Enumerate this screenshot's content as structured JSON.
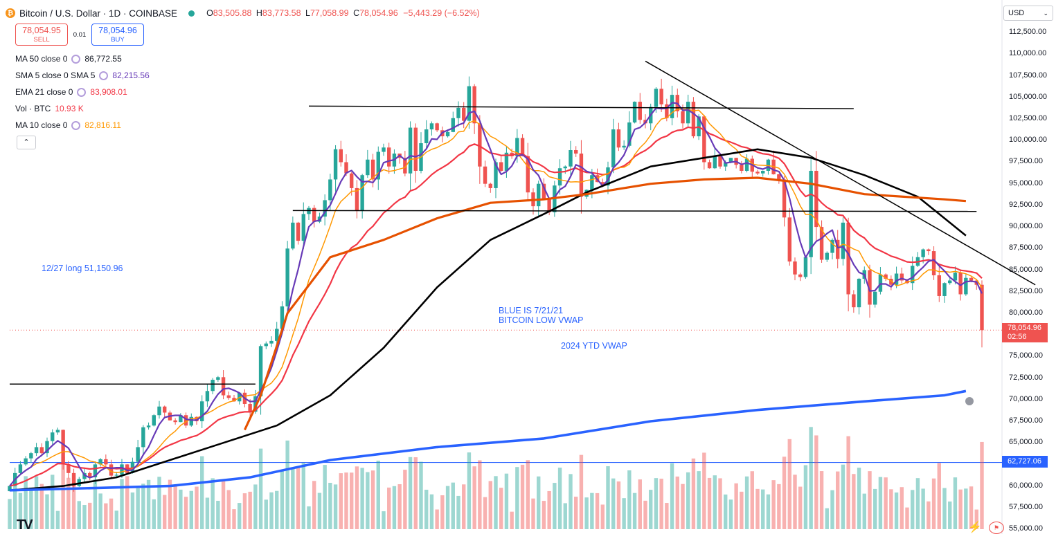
{
  "header": {
    "logo_letter": "₿",
    "symbol": "Bitcoin / U.S. Dollar · 1D · COINBASE",
    "open_label": "O",
    "open": "83,505.88",
    "high_label": "H",
    "high": "83,773.58",
    "low_label": "L",
    "low": "77,058.99",
    "close_label": "C",
    "close": "78,054.96",
    "change": "−5,443.29 (−6.52%)"
  },
  "trade": {
    "sell_price": "78,054.95",
    "sell_label": "SELL",
    "spread": "0.01",
    "buy_price": "78,054.96",
    "buy_label": "BUY"
  },
  "indicators": [
    {
      "label": "MA 50 close 0",
      "value": "86,772.55",
      "color": "#131722"
    },
    {
      "label": "SMA 5 close 0 SMA 5",
      "value": "82,215.56",
      "color": "#673ab7"
    },
    {
      "label": "EMA 21 close 0",
      "value": "83,908.01",
      "color": "#f23645"
    },
    {
      "label": "Vol · BTC",
      "value": "10.93 K",
      "color": "#f23645"
    },
    {
      "label": "MA 10 close 0",
      "value": "82,816.11",
      "color": "#ff9800"
    }
  ],
  "collapse_glyph": "⌃",
  "annotations": {
    "long_entry": "12/27 long 51,150.96",
    "vwap_note_1": "BLUE IS 7/21/21",
    "vwap_note_2": "BITCOIN LOW VWAP",
    "ytd_vwap": "2024 YTD VWAP"
  },
  "currency": "USD",
  "currency_chevron": "⌄",
  "last_price": "78,054.96",
  "countdown": "02:56",
  "hline_price": "62,727.06",
  "tv_logo": "TV",
  "icons": {
    "bolt": "bolt-icon",
    "flag": "flag-icon",
    "clock": "clock-icon"
  },
  "colors": {
    "up": "#26a69a",
    "down": "#ef5350",
    "ma50": "#000000",
    "sma5": "#673ab7",
    "ema21": "#f23645",
    "ma10": "#ff9800",
    "vwap_low": "#2962ff",
    "ytd_vwap": "#e65100"
  },
  "chart_data": {
    "type": "candlestick",
    "title": "Bitcoin / U.S. Dollar · 1D · COINBASE",
    "ylim": [
      55000,
      113000
    ],
    "y_ticks": [
      "112,500.00",
      "110,000.00",
      "107,500.00",
      "105,000.00",
      "102,500.00",
      "100,000.00",
      "97,500.00",
      "95,000.00",
      "92,500.00",
      "90,000.00",
      "87,500.00",
      "85,000.00",
      "82,500.00",
      "80,000.00",
      "77,500.00",
      "75,000.00",
      "72,500.00",
      "70,000.00",
      "67,500.00",
      "65,000.00",
      "62,500.00",
      "60,000.00",
      "57,500.00",
      "55,000.00"
    ],
    "close": [
      60000,
      61500,
      62500,
      63200,
      63800,
      64500,
      63800,
      65200,
      66200,
      66500,
      62500,
      61500,
      60000,
      60800,
      61500,
      61000,
      62500,
      63100,
      62500,
      61200,
      61300,
      62500,
      61500,
      62800,
      64500,
      66800,
      67000,
      68200,
      69200,
      68500,
      67600,
      67400,
      68200,
      67000,
      68000,
      67500,
      69800,
      71000,
      72300,
      72600,
      70500,
      70200,
      69800,
      70800,
      69500,
      68600,
      70400,
      76200,
      76500,
      76800,
      78200,
      80800,
      87500,
      90500,
      88400,
      91500,
      92200,
      90600,
      91200,
      93100,
      95500,
      99000,
      97500,
      96200,
      94500,
      91900,
      96000,
      97800,
      95500,
      98700,
      99200,
      97000,
      98500,
      98000,
      96200,
      101500,
      96500,
      99700,
      101300,
      102000,
      101200,
      100500,
      101000,
      102600,
      103800,
      102300,
      106300,
      102000,
      97000,
      95000,
      94500,
      97500,
      96500,
      98600,
      98200,
      100300,
      98200,
      94000,
      92400,
      95000,
      93300,
      91700,
      94800,
      96800,
      97000,
      98900,
      98500,
      93500,
      94300,
      96000,
      95200,
      94800,
      96900,
      101300,
      99200,
      99400,
      102100,
      104500,
      102400,
      102000,
      103900,
      106000,
      104200,
      102600,
      105300,
      103400,
      102000,
      104500,
      100500,
      102800,
      97500,
      96800,
      98200,
      97000,
      97500,
      98000,
      97200,
      96500,
      97900,
      96400,
      96200,
      96500,
      97800,
      96100,
      95500,
      91100,
      86000,
      84500,
      84200,
      86500,
      96500,
      90000,
      86200,
      87000,
      88500,
      86300,
      90500,
      82200,
      80700,
      84000,
      85000,
      81000,
      82500,
      84500,
      84000,
      83300,
      84600,
      83800,
      83500,
      85500,
      86500,
      87400,
      87200,
      84400,
      82000,
      83500,
      83800,
      84700,
      82200,
      84100,
      83800,
      83300,
      78050
    ],
    "series_names": [
      "MA 50 close 0",
      "SMA 5 close 0 SMA 5",
      "EMA 21 close 0",
      "MA 10 close 0",
      "BLUE IS 7/21/21 BITCOIN LOW VWAP",
      "2024 YTD VWAP"
    ],
    "ma50_points": [
      [
        59500,
        0
      ],
      [
        60000,
        10
      ],
      [
        61000,
        20
      ],
      [
        63000,
        30
      ],
      [
        65000,
        40
      ],
      [
        67000,
        50
      ],
      [
        70500,
        60
      ],
      [
        76000,
        70
      ],
      [
        83000,
        80
      ],
      [
        88500,
        90
      ],
      [
        91500,
        100
      ],
      [
        94000,
        108
      ],
      [
        97000,
        120
      ],
      [
        98000,
        130
      ],
      [
        99000,
        140
      ],
      [
        98000,
        150
      ],
      [
        96000,
        160
      ],
      [
        93500,
        170
      ],
      [
        89000,
        179
      ]
    ],
    "vwap_low_points": [
      [
        59500,
        0
      ],
      [
        60000,
        30
      ],
      [
        61000,
        45
      ],
      [
        63000,
        60
      ],
      [
        64500,
        80
      ],
      [
        65500,
        100
      ],
      [
        67500,
        120
      ],
      [
        68800,
        140
      ],
      [
        69800,
        160
      ],
      [
        70500,
        175
      ],
      [
        71000,
        179
      ]
    ],
    "ytd_vwap_points": [
      [
        66500,
        44
      ],
      [
        70500,
        47
      ],
      [
        80000,
        52
      ],
      [
        86500,
        60
      ],
      [
        88500,
        70
      ],
      [
        91000,
        80
      ],
      [
        92800,
        90
      ],
      [
        93200,
        100
      ],
      [
        93800,
        108
      ],
      [
        95000,
        120
      ],
      [
        95500,
        130
      ],
      [
        95700,
        140
      ],
      [
        95000,
        150
      ],
      [
        93800,
        160
      ],
      [
        93200,
        175
      ],
      [
        93000,
        179
      ]
    ],
    "trendlines": [
      {
        "name": "resistance-line",
        "x1": 56,
        "y1": 104000,
        "x2": 158,
        "y2": 103700
      },
      {
        "name": "support-line",
        "x1": 53,
        "y1": 91900,
        "x2": 181,
        "y2": 91800
      },
      {
        "name": "left-range-line",
        "x1": 0,
        "y1": 71800,
        "x2": 46,
        "y2": 71800
      },
      {
        "name": "descending-trendline",
        "x1": 119,
        "y1": 109200,
        "x2": 192,
        "y2": 83300
      }
    ],
    "hline": 62727.06
  }
}
